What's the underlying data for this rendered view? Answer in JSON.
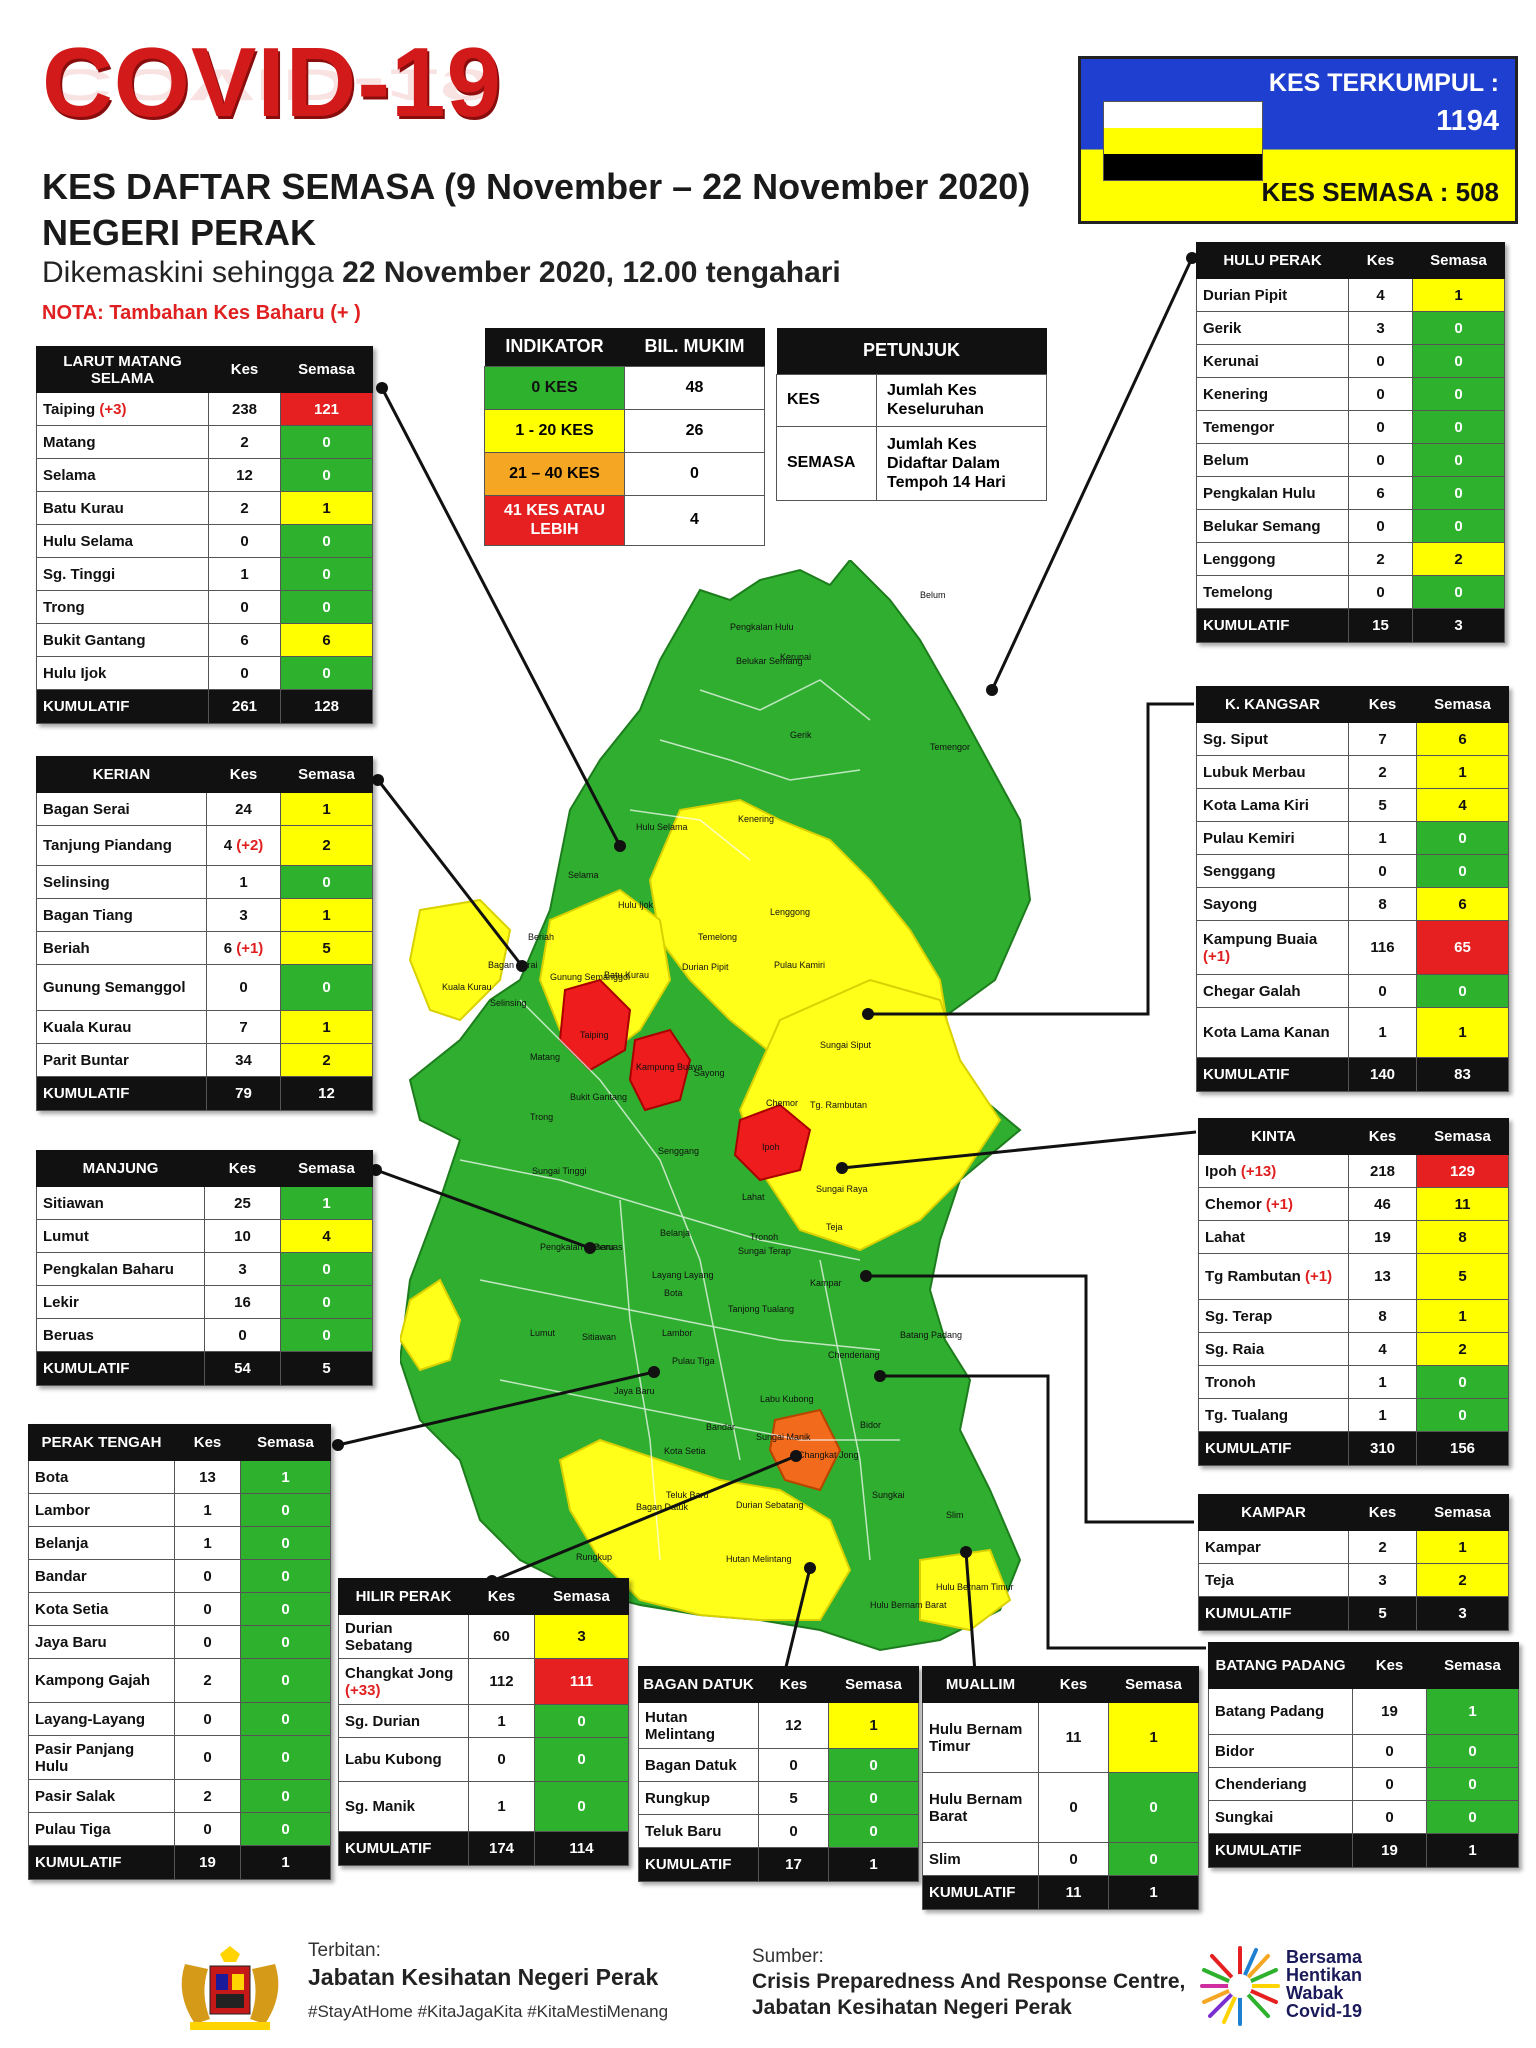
{
  "header": {
    "title": "COVID-19",
    "line1": "KES DAFTAR SEMASA (9 November – 22 November 2020)",
    "line2": "NEGERI PERAK",
    "updated_prefix": "Dikemaskini sehingga ",
    "updated_date": "22 November 2020, 12.00 tengahari",
    "nota": "NOTA: Tambahan Kes Baharu (+   )"
  },
  "summary": {
    "terkumpul_label": "KES TERKUMPUL :",
    "terkumpul_value": "1194",
    "semasa": "KES SEMASA : 508"
  },
  "colors": {
    "green": "#2eb22e",
    "yellow": "#ffff00",
    "orange": "#f5a623",
    "red": "#e62020",
    "flag_white": "#ffffff",
    "flag_yellow": "#ffff00",
    "flag_black": "#000000"
  },
  "indicator": {
    "h1": "INDIKATOR",
    "h2": "BIL. MUKIM",
    "rows": [
      [
        "0 KES",
        "48"
      ],
      [
        "1 - 20 KES",
        "26"
      ],
      [
        "21 – 40 KES",
        "0"
      ],
      [
        "41 KES ATAU LEBIH",
        "4"
      ]
    ]
  },
  "petunjuk": {
    "title": "PETUNJUK",
    "kes_k": "KES",
    "kes_v": "Jumlah Kes Keseluruhan",
    "semasa_k": "SEMASA",
    "semasa_v": "Jumlah Kes Didaftar Dalam Tempoh 14 Hari"
  },
  "col": {
    "kes": "Kes",
    "semasa": "Semasa"
  },
  "districts": {
    "larut": {
      "name": "LARUT MATANG SELAMA",
      "rows": [
        [
          "Taiping",
          "(+3)",
          "238",
          "121",
          "r"
        ],
        [
          "Matang",
          "",
          "2",
          "0",
          "g"
        ],
        [
          "Selama",
          "",
          "12",
          "0",
          "g"
        ],
        [
          "Batu Kurau",
          "",
          "2",
          "1",
          "y"
        ],
        [
          "Hulu Selama",
          "",
          "0",
          "0",
          "g"
        ],
        [
          "Sg. Tinggi",
          "",
          "1",
          "0",
          "g"
        ],
        [
          "Trong",
          "",
          "0",
          "0",
          "g"
        ],
        [
          "Bukit Gantang",
          "",
          "6",
          "6",
          "y"
        ],
        [
          "Hulu Ijok",
          "",
          "0",
          "0",
          "g"
        ]
      ],
      "kum": [
        "KUMULATIF",
        "261",
        "128"
      ]
    },
    "kerian": {
      "name": "KERIAN",
      "rows": [
        [
          "Bagan Serai",
          "",
          "24",
          "1",
          "y"
        ],
        [
          "Tanjung Piandang",
          "",
          "4 (+2)",
          "2",
          "y"
        ],
        [
          "Selinsing",
          "",
          "1",
          "0",
          "g"
        ],
        [
          "Bagan Tiang",
          "",
          "3",
          "1",
          "y"
        ],
        [
          "Beriah",
          "",
          "6 (+1)",
          "5",
          "y"
        ],
        [
          "Gunung Semanggol",
          "",
          "0",
          "0",
          "g"
        ],
        [
          "Kuala Kurau",
          "",
          "7",
          "1",
          "y"
        ],
        [
          "Parit Buntar",
          "",
          "34",
          "2",
          "y"
        ]
      ],
      "kum": [
        "KUMULATIF",
        "79",
        "12"
      ]
    },
    "manjung": {
      "name": "MANJUNG",
      "rows": [
        [
          "Sitiawan",
          "",
          "25",
          "1",
          "g"
        ],
        [
          "Lumut",
          "",
          "10",
          "4",
          "y"
        ],
        [
          "Pengkalan Baharu",
          "",
          "3",
          "0",
          "g"
        ],
        [
          "Lekir",
          "",
          "16",
          "0",
          "g"
        ],
        [
          "Beruas",
          "",
          "0",
          "0",
          "g"
        ]
      ],
      "kum": [
        "KUMULATIF",
        "54",
        "5"
      ]
    },
    "perak_tengah": {
      "name": "PERAK TENGAH",
      "rows": [
        [
          "Bota",
          "",
          "13",
          "1",
          "g"
        ],
        [
          "Lambor",
          "",
          "1",
          "0",
          "g"
        ],
        [
          "Belanja",
          "",
          "1",
          "0",
          "g"
        ],
        [
          "Bandar",
          "",
          "0",
          "0",
          "g"
        ],
        [
          "Kota Setia",
          "",
          "0",
          "0",
          "g"
        ],
        [
          "Jaya Baru",
          "",
          "0",
          "0",
          "g"
        ],
        [
          "Kampong Gajah",
          "",
          "2",
          "0",
          "g"
        ],
        [
          "Layang-Layang",
          "",
          "0",
          "0",
          "g"
        ],
        [
          "Pasir Panjang Hulu",
          "",
          "0",
          "0",
          "g"
        ],
        [
          "Pasir Salak",
          "",
          "2",
          "0",
          "g"
        ],
        [
          "Pulau Tiga",
          "",
          "0",
          "0",
          "g"
        ]
      ],
      "kum": [
        "KUMULATIF",
        "19",
        "1"
      ]
    },
    "hilir": {
      "name": "HILIR PERAK",
      "rows": [
        [
          "Durian Sebatang",
          "",
          "60",
          "3",
          "y"
        ],
        [
          "Changkat Jong",
          "(+33)",
          "112",
          "111",
          "r"
        ],
        [
          "Sg. Durian",
          "",
          "1",
          "0",
          "g"
        ],
        [
          "Labu Kubong",
          "",
          "0",
          "0",
          "g"
        ],
        [
          "Sg. Manik",
          "",
          "1",
          "0",
          "g"
        ]
      ],
      "kum": [
        "KUMULATIF",
        "174",
        "114"
      ]
    },
    "bagan": {
      "name": "BAGAN DATUK",
      "rows": [
        [
          "Hutan Melintang",
          "",
          "12",
          "1",
          "y"
        ],
        [
          "Bagan Datuk",
          "",
          "0",
          "0",
          "g"
        ],
        [
          "Rungkup",
          "",
          "5",
          "0",
          "g"
        ],
        [
          "Teluk Baru",
          "",
          "0",
          "0",
          "g"
        ]
      ],
      "kum": [
        "KUMULATIF",
        "17",
        "1"
      ]
    },
    "muallim": {
      "name": "MUALLIM",
      "rows": [
        [
          "Hulu Bernam Timur",
          "",
          "11",
          "1",
          "y"
        ],
        [
          "Hulu Bernam Barat",
          "",
          "0",
          "0",
          "g"
        ],
        [
          "Slim",
          "",
          "0",
          "0",
          "g"
        ]
      ],
      "kum": [
        "KUMULATIF",
        "11",
        "1"
      ]
    },
    "hulu_perak": {
      "name": "HULU PERAK",
      "rows": [
        [
          "Durian Pipit",
          "",
          "4",
          "1",
          "y"
        ],
        [
          "Gerik",
          "",
          "3",
          "0",
          "g"
        ],
        [
          "Kerunai",
          "",
          "0",
          "0",
          "g"
        ],
        [
          "Kenering",
          "",
          "0",
          "0",
          "g"
        ],
        [
          "Temengor",
          "",
          "0",
          "0",
          "g"
        ],
        [
          "Belum",
          "",
          "0",
          "0",
          "g"
        ],
        [
          "Pengkalan Hulu",
          "",
          "6",
          "0",
          "g"
        ],
        [
          "Belukar Semang",
          "",
          "0",
          "0",
          "g"
        ],
        [
          "Lenggong",
          "",
          "2",
          "2",
          "y"
        ],
        [
          "Temelong",
          "",
          "0",
          "0",
          "g"
        ]
      ],
      "kum": [
        "KUMULATIF",
        "15",
        "3"
      ]
    },
    "kangsar": {
      "name": "K. KANGSAR",
      "rows": [
        [
          "Sg. Siput",
          "",
          "7",
          "6",
          "y"
        ],
        [
          "Lubuk Merbau",
          "",
          "2",
          "1",
          "y"
        ],
        [
          "Kota Lama Kiri",
          "",
          "5",
          "4",
          "y"
        ],
        [
          "Pulau Kemiri",
          "",
          "1",
          "0",
          "g"
        ],
        [
          "Senggang",
          "",
          "0",
          "0",
          "g"
        ],
        [
          "Sayong",
          "",
          "8",
          "6",
          "y"
        ],
        [
          "Kampung Buaia",
          "(+1)",
          "116",
          "65",
          "r"
        ],
        [
          "Chegar Galah",
          "",
          "0",
          "0",
          "g"
        ],
        [
          "Kota Lama Kanan",
          "",
          "1",
          "1",
          "y"
        ]
      ],
      "kum": [
        "KUMULATIF",
        "140",
        "83"
      ]
    },
    "kinta": {
      "name": "KINTA",
      "rows": [
        [
          "Ipoh",
          "(+13)",
          "218",
          "129",
          "r"
        ],
        [
          "Chemor",
          "(+1)",
          "46",
          "11",
          "y"
        ],
        [
          "Lahat",
          "",
          "19",
          "8",
          "y"
        ],
        [
          "Tg Rambutan",
          "(+1)",
          "13",
          "5",
          "y"
        ],
        [
          "Sg. Terap",
          "",
          "8",
          "1",
          "y"
        ],
        [
          "Sg. Raia",
          "",
          "4",
          "2",
          "y"
        ],
        [
          "Tronoh",
          "",
          "1",
          "0",
          "g"
        ],
        [
          "Tg. Tualang",
          "",
          "1",
          "0",
          "g"
        ]
      ],
      "kum": [
        "KUMULATIF",
        "310",
        "156"
      ]
    },
    "kampar": {
      "name": "KAMPAR",
      "rows": [
        [
          "Kampar",
          "",
          "2",
          "1",
          "y"
        ],
        [
          "Teja",
          "",
          "3",
          "2",
          "y"
        ]
      ],
      "kum": [
        "KUMULATIF",
        "5",
        "3"
      ]
    },
    "batang": {
      "name": "BATANG PADANG",
      "rows": [
        [
          "Batang Padang",
          "",
          "19",
          "1",
          "g"
        ],
        [
          "Bidor",
          "",
          "0",
          "0",
          "g"
        ],
        [
          "Chenderiang",
          "",
          "0",
          "0",
          "g"
        ],
        [
          "Sungkai",
          "",
          "0",
          "0",
          "g"
        ]
      ],
      "kum": [
        "KUMULATIF",
        "19",
        "1"
      ]
    }
  },
  "map_labels": [
    "Belum",
    "Temengor",
    "Pengkalan Hulu",
    "Belukar Semang",
    "Kerunai",
    "Gerik",
    "Kenering",
    "Hulu Selama",
    "Selama",
    "Hulu Ijok",
    "Lenggong",
    "Temelong",
    "Durian Pipit",
    "Pulau Kamiri",
    "Batu Kurau",
    "Gunung Semanggol",
    "Beriah",
    "Bagan Serai",
    "Taiping",
    "Kampung Buaya",
    "Sayong",
    "Sungai Siput",
    "Chemor",
    "Tg. Rambutan",
    "Ipoh",
    "Senggang",
    "Lahat",
    "Sungai Raya",
    "Teja",
    "Kampar",
    "Beruas",
    "Pengkalan Baharu",
    "Belanja",
    "Bota",
    "Lumut",
    "Sitiawan",
    "Lambor",
    "Chenderiang",
    "Batang Padang",
    "Bidor",
    "Changkat Jong",
    "Sungkai",
    "Slim",
    "Hutan Melintang",
    "Durian Sebatang",
    "Hulu Bernam Timur",
    "Hulu Bernam Barat",
    "Bagan Datuk",
    "Rungkup",
    "Matang",
    "Bukit Gantang",
    "Trong",
    "Sungai Tinggi",
    "Kuala Kurau",
    "Selinsing",
    "Tronoh",
    "Pulau Tiga",
    "Jaya Baru",
    "Bandar",
    "Kota Setia",
    "Layang Layang",
    "Tanjong Tualang",
    "Sungai Terap",
    "Teluk Baru",
    "Sungai Manik",
    "Labu Kubong"
  ],
  "footer": {
    "terbitan_label": "Terbitan:",
    "terbitan": "Jabatan Kesihatan Negeri Perak",
    "tags": "#StayAtHome #KitaJagaKita #KitaMestiMenang",
    "sumber_label": "Sumber:",
    "sumber1": "Crisis Preparedness And Response Centre,",
    "sumber2": "Jabatan Kesihatan Negeri Perak",
    "campaign1": "Bersama",
    "campaign2": "Hentikan",
    "campaign3": "Wabak",
    "campaign4": "Covid-19"
  }
}
